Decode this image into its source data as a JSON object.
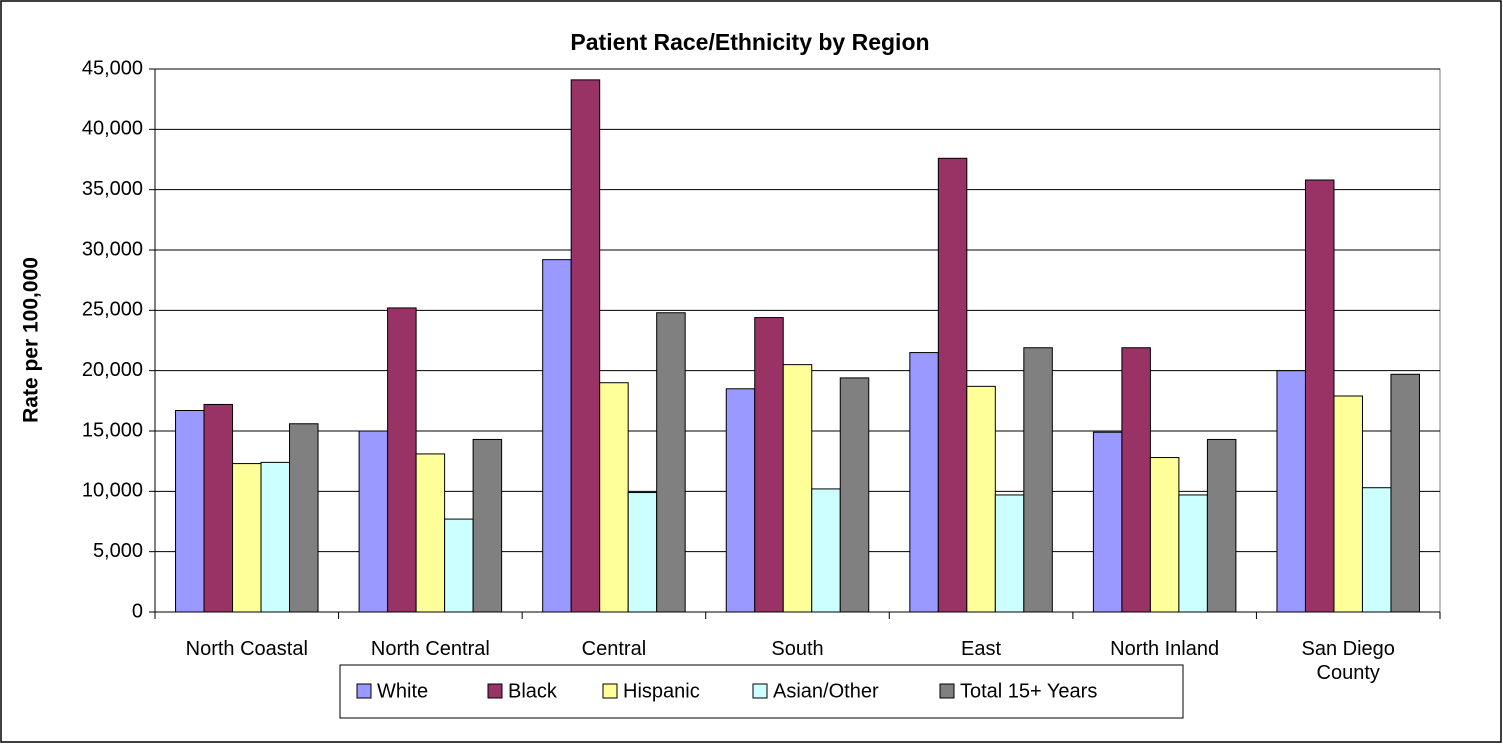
{
  "chart_data": {
    "type": "bar",
    "title": "Patient Race/Ethnicity by Region",
    "y_label": "Rate per 100,000",
    "categories": [
      "North Coastal",
      "North Central",
      "Central",
      "South",
      "East",
      "North Inland",
      "San Diego County"
    ],
    "series": [
      {
        "name": "White",
        "color": "#9999ff",
        "values": [
          16700,
          15000,
          29200,
          18500,
          21500,
          14900,
          20000
        ]
      },
      {
        "name": "Black",
        "color": "#993366",
        "values": [
          17200,
          25200,
          44100,
          24400,
          37600,
          21900,
          35800
        ]
      },
      {
        "name": "Hispanic",
        "color": "#ffff99",
        "values": [
          12300,
          13100,
          19000,
          20500,
          18700,
          12800,
          17900
        ]
      },
      {
        "name": "Asian/Other",
        "color": "#ccffff",
        "values": [
          12400,
          7700,
          9900,
          10200,
          9700,
          9700,
          10300
        ]
      },
      {
        "name": "Total 15+ Years",
        "color": "#808080",
        "values": [
          15600,
          14300,
          24800,
          19400,
          21900,
          14300,
          19700
        ]
      }
    ],
    "ylim": [
      0,
      45000
    ],
    "yticks": [
      0,
      {
        "value": 5000,
        "label": "5,000"
      },
      {
        "value": 10000,
        "label": "10,000"
      },
      {
        "value": 15000,
        "label": "15,000"
      },
      {
        "value": 20000,
        "label": "20,000"
      },
      {
        "value": 25000,
        "label": "25,000"
      },
      {
        "value": 30000,
        "label": "30,000"
      },
      {
        "value": 35000,
        "label": "35,000"
      },
      {
        "value": 40000,
        "label": "40,000"
      },
      {
        "value": 45000,
        "label": "45,000"
      }
    ],
    "grid": true,
    "legend": "bottom"
  }
}
